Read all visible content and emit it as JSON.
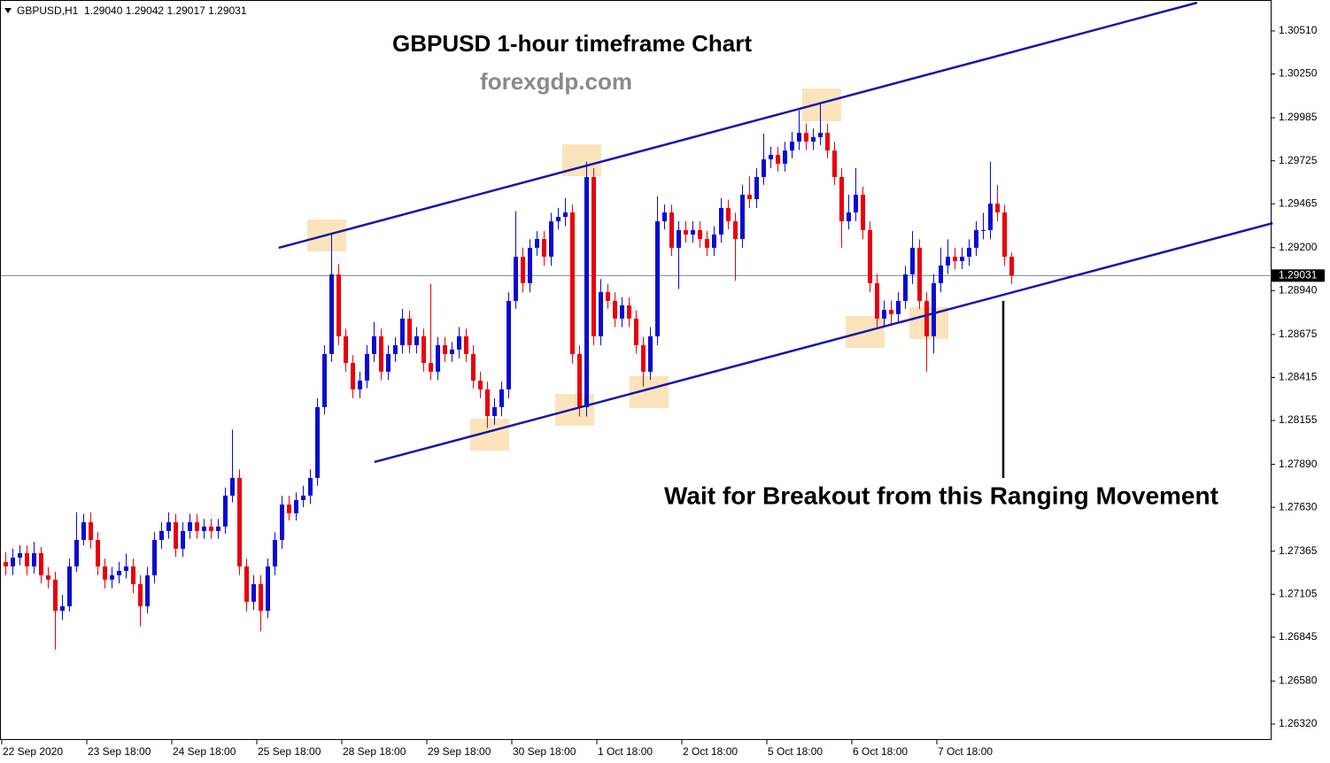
{
  "chart_data": {
    "type": "candlestick",
    "header": "GBPUSD,H1  1.29040 1.29042 1.29017 1.29031",
    "title": "GBPUSD 1-hour timeframe Chart",
    "subtitle": "forexgdp.com",
    "annotation": "Wait for Breakout from this Ranging Movement",
    "up_color": "#0a0ad2",
    "down_color": "#e8000b",
    "channel_color": "#1616a8",
    "last_price": 1.29031,
    "xlim": [
      -0.75,
      178.625
    ],
    "ylim": [
      1.26229,
      1.30697
    ],
    "xticks": [
      {
        "value": -0.5,
        "label": "22 Sep 2020"
      },
      {
        "value": 11.5,
        "label": "23 Sep 18:00"
      },
      {
        "value": 23.5,
        "label": "24 Sep 18:00"
      },
      {
        "value": 35.5,
        "label": "25 Sep 18:00"
      },
      {
        "value": 47.5,
        "label": "28 Sep 18:00"
      },
      {
        "value": 59.5,
        "label": "29 Sep 18:00"
      },
      {
        "value": 71.5,
        "label": "30 Sep 18:00"
      },
      {
        "value": 83.5,
        "label": "1 Oct 18:00"
      },
      {
        "value": 95.5,
        "label": "2 Oct 18:00"
      },
      {
        "value": 107.5,
        "label": "5 Oct 18:00"
      },
      {
        "value": 119.5,
        "label": "6 Oct 18:00"
      },
      {
        "value": 131.5,
        "label": "7 Oct 18:00"
      }
    ],
    "yticks": [
      {
        "value": 1.3051,
        "label": "1.30510"
      },
      {
        "value": 1.3025,
        "label": "1.30250"
      },
      {
        "value": 1.29985,
        "label": "1.29985"
      },
      {
        "value": 1.29725,
        "label": "1.29725"
      },
      {
        "value": 1.29465,
        "label": "1.29465"
      },
      {
        "value": 1.292,
        "label": "1.29200"
      },
      {
        "value": 1.2894,
        "label": "1.28940"
      },
      {
        "value": 1.28675,
        "label": "1.28675"
      },
      {
        "value": 1.28415,
        "label": "1.28415"
      },
      {
        "value": 1.28155,
        "label": "1.28155"
      },
      {
        "value": 1.2789,
        "label": "1.27890"
      },
      {
        "value": 1.2763,
        "label": "1.27630"
      },
      {
        "value": 1.27365,
        "label": "1.27365"
      },
      {
        "value": 1.27105,
        "label": "1.27105"
      },
      {
        "value": 1.26845,
        "label": "1.26845"
      },
      {
        "value": 1.2658,
        "label": "1.26580"
      },
      {
        "value": 1.2632,
        "label": "1.26320"
      }
    ],
    "trendlines": [
      {
        "x": [
          38.6,
          168.25
        ],
        "y": [
          1.29199,
          1.30681
        ]
      },
      {
        "x": [
          52.1,
          178.9
        ],
        "y": [
          1.27904,
          1.29348
        ]
      }
    ],
    "candles": [
      [
        1.273,
        1.2736,
        1.2722,
        1.27273
      ],
      [
        1.27273,
        1.2738,
        1.2722,
        1.27326
      ],
      [
        1.27326,
        1.274,
        1.2728,
        1.27353
      ],
      [
        1.27353,
        1.274,
        1.2722,
        1.27273
      ],
      [
        1.27273,
        1.2742,
        1.2723,
        1.27353
      ],
      [
        1.27353,
        1.2739,
        1.2717,
        1.27219
      ],
      [
        1.27219,
        1.2727,
        1.2714,
        1.27193
      ],
      [
        1.27193,
        1.2724,
        1.2677,
        1.27005
      ],
      [
        1.27005,
        1.271,
        1.2695,
        1.27032
      ],
      [
        1.27032,
        1.2732,
        1.27,
        1.27273
      ],
      [
        1.27273,
        1.276,
        1.2724,
        1.27433
      ],
      [
        1.27433,
        1.2759,
        1.274,
        1.2754
      ],
      [
        1.2754,
        1.276,
        1.2738,
        1.27433
      ],
      [
        1.27433,
        1.2748,
        1.2722,
        1.27273
      ],
      [
        1.27273,
        1.2732,
        1.2714,
        1.27193
      ],
      [
        1.27193,
        1.2727,
        1.2714,
        1.27219
      ],
      [
        1.27219,
        1.273,
        1.2717,
        1.27246
      ],
      [
        1.27246,
        1.2735,
        1.272,
        1.27273
      ],
      [
        1.27273,
        1.2732,
        1.2711,
        1.27166
      ],
      [
        1.27166,
        1.2722,
        1.2691,
        1.27032
      ],
      [
        1.27032,
        1.2727,
        1.2699,
        1.27219
      ],
      [
        1.27219,
        1.2748,
        1.2717,
        1.27433
      ],
      [
        1.27433,
        1.2754,
        1.2738,
        1.27487
      ],
      [
        1.27487,
        1.276,
        1.2744,
        1.2754
      ],
      [
        1.2754,
        1.2759,
        1.2733,
        1.2738
      ],
      [
        1.2738,
        1.2754,
        1.2733,
        1.27487
      ],
      [
        1.27487,
        1.2759,
        1.2744,
        1.2754
      ],
      [
        1.2754,
        1.2759,
        1.2744,
        1.27487
      ],
      [
        1.27487,
        1.2756,
        1.2744,
        1.27514
      ],
      [
        1.27514,
        1.2756,
        1.2744,
        1.27487
      ],
      [
        1.27487,
        1.2756,
        1.2744,
        1.27514
      ],
      [
        1.27514,
        1.2775,
        1.2747,
        1.27701
      ],
      [
        1.27701,
        1.281,
        1.2766,
        1.27808
      ],
      [
        1.27808,
        1.2786,
        1.2722,
        1.27273
      ],
      [
        1.27273,
        1.2732,
        1.27,
        1.27059
      ],
      [
        1.27059,
        1.2722,
        1.2701,
        1.27166
      ],
      [
        1.27166,
        1.2722,
        1.2688,
        1.27005
      ],
      [
        1.27005,
        1.2732,
        1.2696,
        1.27273
      ],
      [
        1.27273,
        1.2748,
        1.2722,
        1.27433
      ],
      [
        1.27433,
        1.277,
        1.2738,
        1.27647
      ],
      [
        1.27647,
        1.277,
        1.2755,
        1.27594
      ],
      [
        1.27594,
        1.2772,
        1.2755,
        1.27674
      ],
      [
        1.27674,
        1.2776,
        1.2763,
        1.27701
      ],
      [
        1.27701,
        1.2786,
        1.2765,
        1.27808
      ],
      [
        1.27808,
        1.2829,
        1.2776,
        1.28236
      ],
      [
        1.28236,
        1.2861,
        1.2819,
        1.28557
      ],
      [
        1.28557,
        1.2928,
        1.2851,
        1.29038
      ],
      [
        1.29038,
        1.291,
        1.2861,
        1.28664
      ],
      [
        1.28664,
        1.2871,
        1.2845,
        1.28503
      ],
      [
        1.28503,
        1.2855,
        1.2829,
        1.28343
      ],
      [
        1.28343,
        1.2845,
        1.2829,
        1.28396
      ],
      [
        1.28396,
        1.2861,
        1.2835,
        1.28557
      ],
      [
        1.28557,
        1.2875,
        1.2851,
        1.28664
      ],
      [
        1.28664,
        1.2871,
        1.284,
        1.2845
      ],
      [
        1.2845,
        1.2861,
        1.284,
        1.28557
      ],
      [
        1.28557,
        1.2866,
        1.2851,
        1.2861
      ],
      [
        1.2861,
        1.2883,
        1.2856,
        1.28771
      ],
      [
        1.28771,
        1.2882,
        1.2856,
        1.2861
      ],
      [
        1.2861,
        1.2872,
        1.2856,
        1.28664
      ],
      [
        1.28664,
        1.2871,
        1.2845,
        1.28503
      ],
      [
        1.28503,
        1.2898,
        1.284,
        1.2845
      ],
      [
        1.2845,
        1.2866,
        1.284,
        1.2861
      ],
      [
        1.2861,
        1.2866,
        1.2851,
        1.28557
      ],
      [
        1.28557,
        1.2863,
        1.2851,
        1.28584
      ],
      [
        1.28584,
        1.2872,
        1.2853,
        1.28664
      ],
      [
        1.28664,
        1.2871,
        1.2851,
        1.28557
      ],
      [
        1.28557,
        1.2861,
        1.2835,
        1.28396
      ],
      [
        1.28396,
        1.2845,
        1.2829,
        1.28343
      ],
      [
        1.28343,
        1.2839,
        1.2811,
        1.28182
      ],
      [
        1.28182,
        1.2829,
        1.2813,
        1.28236
      ],
      [
        1.28236,
        1.2839,
        1.2818,
        1.28343
      ],
      [
        1.28343,
        1.2893,
        1.2829,
        1.28878
      ],
      [
        1.28878,
        1.2942,
        1.2883,
        1.29145
      ],
      [
        1.29145,
        1.292,
        1.2893,
        1.28985
      ],
      [
        1.28985,
        1.2925,
        1.2893,
        1.29199
      ],
      [
        1.29199,
        1.293,
        1.2915,
        1.29252
      ],
      [
        1.29252,
        1.293,
        1.2909,
        1.29145
      ],
      [
        1.29145,
        1.2941,
        1.2909,
        1.29359
      ],
      [
        1.29359,
        1.2944,
        1.2931,
        1.29386
      ],
      [
        1.29386,
        1.295,
        1.2933,
        1.29413
      ],
      [
        1.29413,
        1.2946,
        1.285,
        1.28557
      ],
      [
        1.28557,
        1.2861,
        1.2818,
        1.28236
      ],
      [
        1.28236,
        1.2972,
        1.2818,
        1.29627
      ],
      [
        1.29627,
        1.2968,
        1.2861,
        1.28664
      ],
      [
        1.28664,
        1.2901,
        1.2861,
        1.28931
      ],
      [
        1.28931,
        1.2898,
        1.2883,
        1.28878
      ],
      [
        1.28878,
        1.2893,
        1.2872,
        1.28771
      ],
      [
        1.28771,
        1.289,
        1.2872,
        1.28851
      ],
      [
        1.28851,
        1.289,
        1.2872,
        1.28771
      ],
      [
        1.28771,
        1.2882,
        1.2856,
        1.2861
      ],
      [
        1.2861,
        1.2866,
        1.2836,
        1.2845
      ],
      [
        1.2845,
        1.2872,
        1.284,
        1.28664
      ],
      [
        1.28664,
        1.2951,
        1.2861,
        1.29359
      ],
      [
        1.29359,
        1.2946,
        1.2931,
        1.29413
      ],
      [
        1.29413,
        1.2946,
        1.2915,
        1.29199
      ],
      [
        1.29199,
        1.2936,
        1.2895,
        1.29306
      ],
      [
        1.29306,
        1.2936,
        1.2923,
        1.29279
      ],
      [
        1.29279,
        1.2936,
        1.2923,
        1.29306
      ],
      [
        1.29306,
        1.2936,
        1.292,
        1.29252
      ],
      [
        1.29252,
        1.293,
        1.2915,
        1.29199
      ],
      [
        1.29199,
        1.2933,
        1.2915,
        1.29279
      ],
      [
        1.29279,
        1.295,
        1.2923,
        1.2944
      ],
      [
        1.2944,
        1.2949,
        1.2931,
        1.29359
      ],
      [
        1.29359,
        1.2941,
        1.29,
        1.29252
      ],
      [
        1.29252,
        1.2958,
        1.292,
        1.2952
      ],
      [
        1.2952,
        1.2963,
        1.2944,
        1.29493
      ],
      [
        1.29493,
        1.2968,
        1.2944,
        1.29627
      ],
      [
        1.29627,
        1.2989,
        1.2958,
        1.29734
      ],
      [
        1.29734,
        1.2981,
        1.2968,
        1.29761
      ],
      [
        1.29761,
        1.2981,
        1.2966,
        1.29707
      ],
      [
        1.29707,
        1.2984,
        1.2966,
        1.29787
      ],
      [
        1.29787,
        1.299,
        1.2974,
        1.29841
      ],
      [
        1.29841,
        1.3003,
        1.2979,
        1.29894
      ],
      [
        1.29894,
        1.2995,
        1.2979,
        1.29841
      ],
      [
        1.29841,
        1.2992,
        1.2979,
        1.29868
      ],
      [
        1.29868,
        1.3008,
        1.2982,
        1.29894
      ],
      [
        1.29894,
        1.2995,
        1.2974,
        1.29787
      ],
      [
        1.29787,
        1.2984,
        1.2958,
        1.29627
      ],
      [
        1.29627,
        1.2968,
        1.292,
        1.29359
      ],
      [
        1.29359,
        1.2952,
        1.2931,
        1.29413
      ],
      [
        1.29413,
        1.2968,
        1.2936,
        1.2952
      ],
      [
        1.2952,
        1.2957,
        1.2925,
        1.29306
      ],
      [
        1.29306,
        1.2936,
        1.2893,
        1.28985
      ],
      [
        1.28985,
        1.2904,
        1.2872,
        1.28771
      ],
      [
        1.28771,
        1.2888,
        1.2872,
        1.28824
      ],
      [
        1.28824,
        1.2888,
        1.2874,
        1.28798
      ],
      [
        1.28798,
        1.2893,
        1.2874,
        1.28878
      ],
      [
        1.28878,
        1.2909,
        1.2883,
        1.29038
      ],
      [
        1.29038,
        1.293,
        1.2898,
        1.29199
      ],
      [
        1.29199,
        1.2925,
        1.2883,
        1.28878
      ],
      [
        1.28878,
        1.2893,
        1.2845,
        1.28664
      ],
      [
        1.28664,
        1.2904,
        1.2856,
        1.28985
      ],
      [
        1.28985,
        1.292,
        1.2893,
        1.29092
      ],
      [
        1.29092,
        1.2925,
        1.2904,
        1.29145
      ],
      [
        1.29145,
        1.292,
        1.2907,
        1.29119
      ],
      [
        1.29119,
        1.292,
        1.2907,
        1.29145
      ],
      [
        1.29145,
        1.2925,
        1.2909,
        1.29199
      ],
      [
        1.29199,
        1.2936,
        1.2915,
        1.29306
      ],
      [
        1.29306,
        1.2941,
        1.2925,
        1.29306
      ],
      [
        1.29306,
        1.2972,
        1.2925,
        1.29466
      ],
      [
        1.29466,
        1.2958,
        1.2936,
        1.29413
      ],
      [
        1.29413,
        1.2946,
        1.2909,
        1.29145
      ],
      [
        1.29145,
        1.2917,
        1.2898,
        1.29031
      ]
    ]
  }
}
